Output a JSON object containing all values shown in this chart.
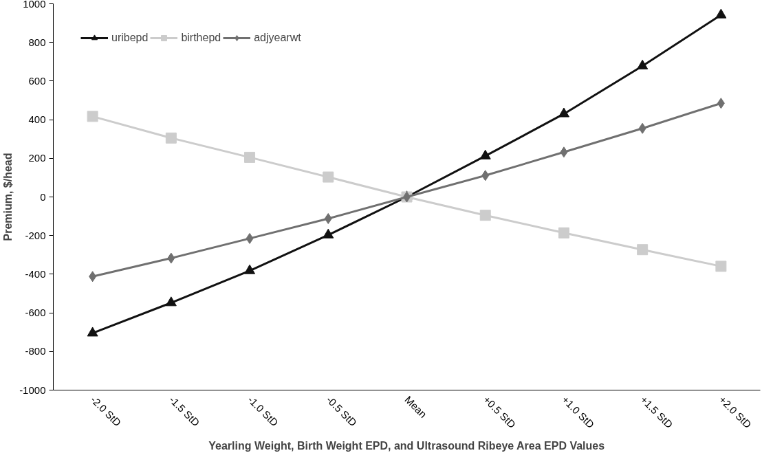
{
  "chart_data": {
    "type": "line",
    "xlabel": "Yearling Weight, Birth Weight EPD, and Ultrasound Ribeye Area EPD Values",
    "ylabel": "Premium, $/head",
    "categories": [
      "-2.0 StD",
      "-1.5 StD",
      "-1.0 StD",
      "-0.5 StD",
      "Mean",
      "+0.5 StD",
      "+1.0 StD",
      "+1.5 StD",
      "+2.0 StD"
    ],
    "ylim": [
      -1000,
      1000
    ],
    "yticks": [
      -1000,
      -800,
      -600,
      -400,
      -200,
      0,
      200,
      400,
      600,
      800,
      1000
    ],
    "grid": false,
    "legend": "top left",
    "series": [
      {
        "name": "uribepd",
        "color": "#111111",
        "marker": "triangle",
        "values": [
          -705,
          -548,
          -382,
          -197,
          0,
          212,
          430,
          678,
          942
        ]
      },
      {
        "name": "birthepd",
        "color": "#cccccc",
        "marker": "square",
        "values": [
          417,
          305,
          205,
          103,
          0,
          -95,
          -186,
          -273,
          -359
        ]
      },
      {
        "name": "adjyearwt",
        "color": "#707070",
        "marker": "diamond",
        "values": [
          -412,
          -317,
          -215,
          -112,
          0,
          111,
          232,
          355,
          485
        ]
      }
    ]
  }
}
